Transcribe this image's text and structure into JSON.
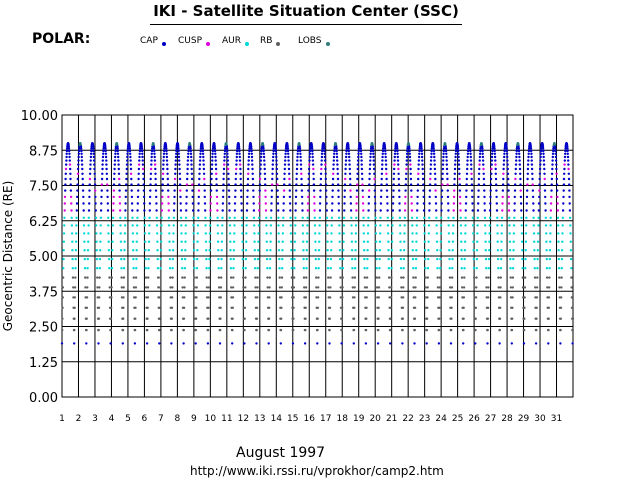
{
  "header": {
    "title": "IKI - Satellite Situation Center (SSC)",
    "satellite": "POLAR:"
  },
  "legend": [
    {
      "label": "CAP",
      "color": "#0000c8"
    },
    {
      "label": "CUSP",
      "color": "#e000e0"
    },
    {
      "label": "AUR",
      "color": "#00d8d8"
    },
    {
      "label": "RB",
      "color": "#606060"
    },
    {
      "label": "LOBS",
      "color": "#2e7e7e"
    }
  ],
  "footer": {
    "month": "August    1997",
    "url": "http://www.iki.rssi.ru/vprokhor/camp2.htm"
  },
  "chart_data": {
    "type": "scatter",
    "title": "IKI - Satellite Situation Center (SSC)",
    "ylabel": "Geocentric Distance (RE)",
    "xlabel": "August    1997",
    "ylim": [
      0,
      10
    ],
    "yticks": [
      "0.00",
      "1.25",
      "2.50",
      "3.75",
      "5.00",
      "6.25",
      "7.50",
      "8.75",
      "10.00"
    ],
    "xticks": [
      "1",
      "2",
      "3",
      "4",
      "5",
      "6",
      "7",
      "8",
      "9",
      "10",
      "11",
      "12",
      "13",
      "14",
      "15",
      "16",
      "17",
      "18",
      "19",
      "20",
      "21",
      "22",
      "23",
      "24",
      "25",
      "26",
      "27",
      "28",
      "29",
      "30",
      "31"
    ],
    "xlim": [
      1,
      32
    ],
    "grid": true,
    "orbit_period_days": 0.7375,
    "apogee_re": 9.0,
    "perigee_re": 1.9,
    "region_by_distance": [
      {
        "region": "CAP",
        "min_re": 7.6,
        "max_re": 9.1
      },
      {
        "region": "CUSP",
        "min_re": 6.3,
        "max_re": 8.2
      },
      {
        "region": "AUR",
        "min_re": 4.2,
        "max_re": 6.8
      },
      {
        "region": "RB",
        "min_re": 1.9,
        "max_re": 4.4
      },
      {
        "region": "LOBS",
        "min_re": 8.3,
        "max_re": 9.1
      }
    ]
  }
}
